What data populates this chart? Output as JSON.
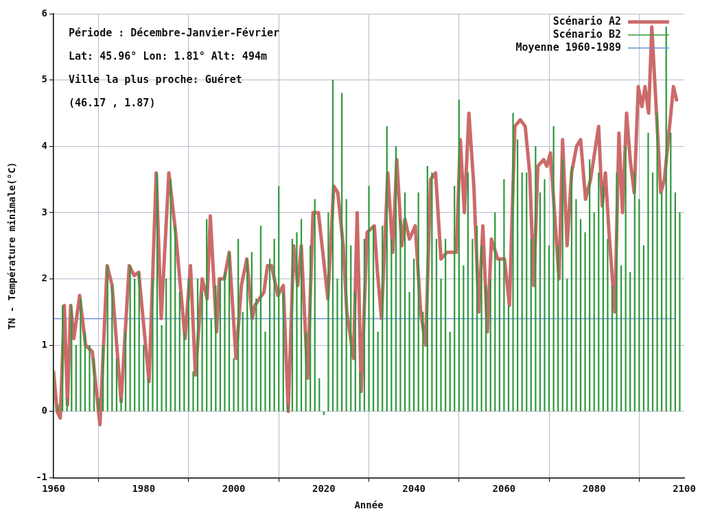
{
  "chart_data": {
    "type": "line",
    "xlabel": "Année",
    "ylabel": "TN - Température minimale(°C)",
    "xlim": [
      1960,
      2100
    ],
    "xticks": [
      1960,
      1980,
      2000,
      2020,
      2040,
      2060,
      2080,
      2100
    ],
    "ylim": [
      -1,
      6
    ],
    "yticks": [
      -1,
      0,
      1,
      2,
      3,
      4,
      5,
      6
    ],
    "grid": true,
    "legend": "top right",
    "line_style": "solid",
    "marker": "none",
    "annotations": [
      "Période : Décembre-Janvier-Février",
      "Lat: 45.96° Lon: 1.81° Alt: 494m",
      "Ville la plus proche: Guéret",
      "(46.17 , 1.87)"
    ],
    "series": [
      {
        "name": "Scénario A2",
        "color": "#cc6a6a",
        "x": [
          1960,
          1960.8,
          1961.5,
          1962.4,
          1963.1,
          1963.8,
          1964.5,
          1965.8,
          1967.1,
          1968.6,
          1970.3,
          1971.9,
          1973,
          1975,
          1976.8,
          1977.9,
          1978.9,
          1981.2,
          1982.8,
          1983.9,
          1985.6,
          1987.1,
          1988.4,
          1989.2,
          1990.4,
          1991.5,
          1993,
          1994.1,
          1994.8,
          1996.2,
          1996.8,
          1997.9,
          1999,
          2000.5,
          2001.7,
          2002.9,
          2004.1,
          2004.7,
          2006.7,
          2007.5,
          2008.4,
          2009.8,
          2011,
          2012.1,
          2013.3,
          2014.2,
          2015,
          2016.4,
          2017.6,
          2018.8,
          2020.9,
          2022.2,
          2023.1,
          2024.3,
          2025.1,
          2026.6,
          2027.4,
          2028.3,
          2029.6,
          2031.2,
          2031.9,
          2032.8,
          2034.2,
          2035.3,
          2036.2,
          2037.3,
          2038,
          2039,
          2040.3,
          2041.5,
          2042.6,
          2043.7,
          2044.8,
          2046,
          2047.3,
          2048.5,
          2049.4,
          2050.3,
          2051.2,
          2052.2,
          2053.3,
          2054.4,
          2055.3,
          2056.3,
          2057.2,
          2058.6,
          2060.1,
          2061.2,
          2062.4,
          2063.6,
          2064.7,
          2065.7,
          2066.6,
          2067.5,
          2068.8,
          2069.5,
          2070.3,
          2071.3,
          2072.2,
          2073,
          2074,
          2075,
          2076.1,
          2077,
          2078.1,
          2079.2,
          2080.1,
          2081,
          2081.8,
          2082.5,
          2083.3,
          2084.6,
          2085.5,
          2086.3,
          2087.2,
          2088,
          2088.9,
          2089.8,
          2090.6,
          2091.3,
          2092.1,
          2092.8,
          2094.8,
          2095.6,
          2097.6,
          2098.3
        ],
        "values": [
          0.6,
          0,
          -0.1,
          1.6,
          0.1,
          1.6,
          1.1,
          1.75,
          1,
          0.9,
          -0.2,
          2.2,
          1.9,
          0.15,
          2.2,
          2.05,
          2.1,
          0.45,
          3.6,
          1.4,
          3.6,
          2.7,
          1.7,
          1.1,
          2.2,
          0.55,
          2,
          1.7,
          2.95,
          1.2,
          2,
          2,
          2.4,
          0.8,
          1.9,
          2.3,
          1.4,
          1.6,
          1.8,
          2.2,
          2.2,
          1.75,
          1.9,
          0,
          2.5,
          1.9,
          2.5,
          0.5,
          3,
          3,
          1.7,
          3.4,
          3.3,
          2.5,
          1.5,
          0.8,
          3,
          0.3,
          2.7,
          2.8,
          2.1,
          1.4,
          3.6,
          2.4,
          3.8,
          2.5,
          2.9,
          2.6,
          2.8,
          1.5,
          1,
          3.5,
          3.6,
          2.3,
          2.4,
          2.4,
          2.4,
          4.1,
          3,
          4.5,
          3.4,
          1.5,
          2.8,
          1.2,
          2.6,
          2.3,
          2.3,
          1.6,
          4.3,
          4.4,
          4.3,
          3.6,
          1.9,
          3.7,
          3.8,
          3.7,
          3.9,
          2.9,
          2,
          4.1,
          2.5,
          3.6,
          4,
          4.1,
          3.2,
          3.5,
          3.9,
          4.3,
          3.1,
          3.6,
          2.7,
          1.5,
          4.2,
          3,
          4.5,
          3.8,
          3.3,
          4.9,
          4.6,
          4.9,
          4.5,
          5.8,
          3.3,
          3.5,
          4.9,
          4.7
        ]
      },
      {
        "name": "Scénario B2",
        "type": "bar",
        "color": "#2f9a3c",
        "x": [
          1960,
          1961,
          1962,
          1963,
          1964,
          1965,
          1966,
          1967,
          1968,
          1969,
          1970,
          1971,
          1972,
          1973,
          1974,
          1975,
          1976,
          1977,
          1978,
          1979,
          1980,
          1981,
          1982,
          1983,
          1984,
          1985,
          1986,
          1987,
          1988,
          1989,
          1990,
          1991,
          1992,
          1993,
          1994,
          1995,
          1996,
          1997,
          1998,
          1999,
          2000,
          2001,
          2002,
          2003,
          2004,
          2005,
          2006,
          2007,
          2008,
          2009,
          2010,
          2011,
          2012,
          2013,
          2014,
          2015,
          2016,
          2017,
          2018,
          2019,
          2020,
          2021,
          2022,
          2023,
          2024,
          2025,
          2026,
          2027,
          2028,
          2029,
          2030,
          2031,
          2032,
          2033,
          2034,
          2035,
          2036,
          2037,
          2038,
          2039,
          2040,
          2041,
          2042,
          2043,
          2044,
          2045,
          2046,
          2047,
          2048,
          2049,
          2050,
          2051,
          2052,
          2053,
          2054,
          2055,
          2056,
          2057,
          2058,
          2059,
          2060,
          2061,
          2062,
          2063,
          2064,
          2065,
          2066,
          2067,
          2068,
          2069,
          2070,
          2071,
          2072,
          2073,
          2074,
          2075,
          2076,
          2077,
          2078,
          2079,
          2080,
          2081,
          2082,
          2083,
          2084,
          2085,
          2086,
          2087,
          2088,
          2089,
          2090,
          2091,
          2092,
          2093,
          2094,
          2095,
          2096,
          2097,
          2098,
          2099
        ],
        "values": [
          0.6,
          0.1,
          1.6,
          0.2,
          1.6,
          1,
          1.7,
          1.2,
          1,
          0.8,
          0.2,
          1,
          2.2,
          1.9,
          0.8,
          0.2,
          1.2,
          2.2,
          2,
          2.1,
          1,
          0.5,
          2,
          3.6,
          1.3,
          2,
          3.5,
          2.8,
          1.8,
          1.2,
          2,
          0.6,
          2,
          1.8,
          2.9,
          1.4,
          1.9,
          2,
          2.1,
          2.4,
          0.8,
          2.6,
          1.5,
          2.3,
          2.4,
          1.7,
          2.8,
          1.2,
          2.3,
          2.6,
          3.4,
          1.8,
          0.1,
          2.6,
          2.7,
          2.9,
          1.2,
          2.5,
          3.2,
          0.5,
          -0.05,
          3,
          5,
          2,
          4.8,
          3.2,
          2.5,
          1.8,
          0.6,
          2.6,
          3.4,
          2.8,
          1.2,
          2.8,
          4.3,
          2.6,
          4,
          2.9,
          3.3,
          1.8,
          2.3,
          3.3,
          1.5,
          3.7,
          3.6,
          2.6,
          2,
          2.6,
          1.2,
          3.4,
          4.7,
          2.2,
          3.6,
          2.6,
          2.8,
          2.5,
          1.9,
          2,
          3,
          2.3,
          3.5,
          1.6,
          4.5,
          4.1,
          3.6,
          3.6,
          2.6,
          4,
          3.3,
          3.5,
          2.5,
          4.3,
          2.5,
          3.8,
          2,
          3.7,
          3.2,
          2.9,
          2.7,
          3.8,
          3,
          3.6,
          3.4,
          2.6,
          1.9,
          3.6,
          2.2,
          4,
          2.1,
          3.6,
          3.2,
          2.5,
          4.2,
          3.6,
          4.5,
          3.3,
          5.8,
          4.2,
          3.3,
          3
        ]
      },
      {
        "name": "Moyenne 1960-1989",
        "type": "line",
        "color": "#6a8fd8",
        "x": [
          1960,
          2098
        ],
        "values": [
          1.4,
          1.4
        ]
      }
    ]
  }
}
